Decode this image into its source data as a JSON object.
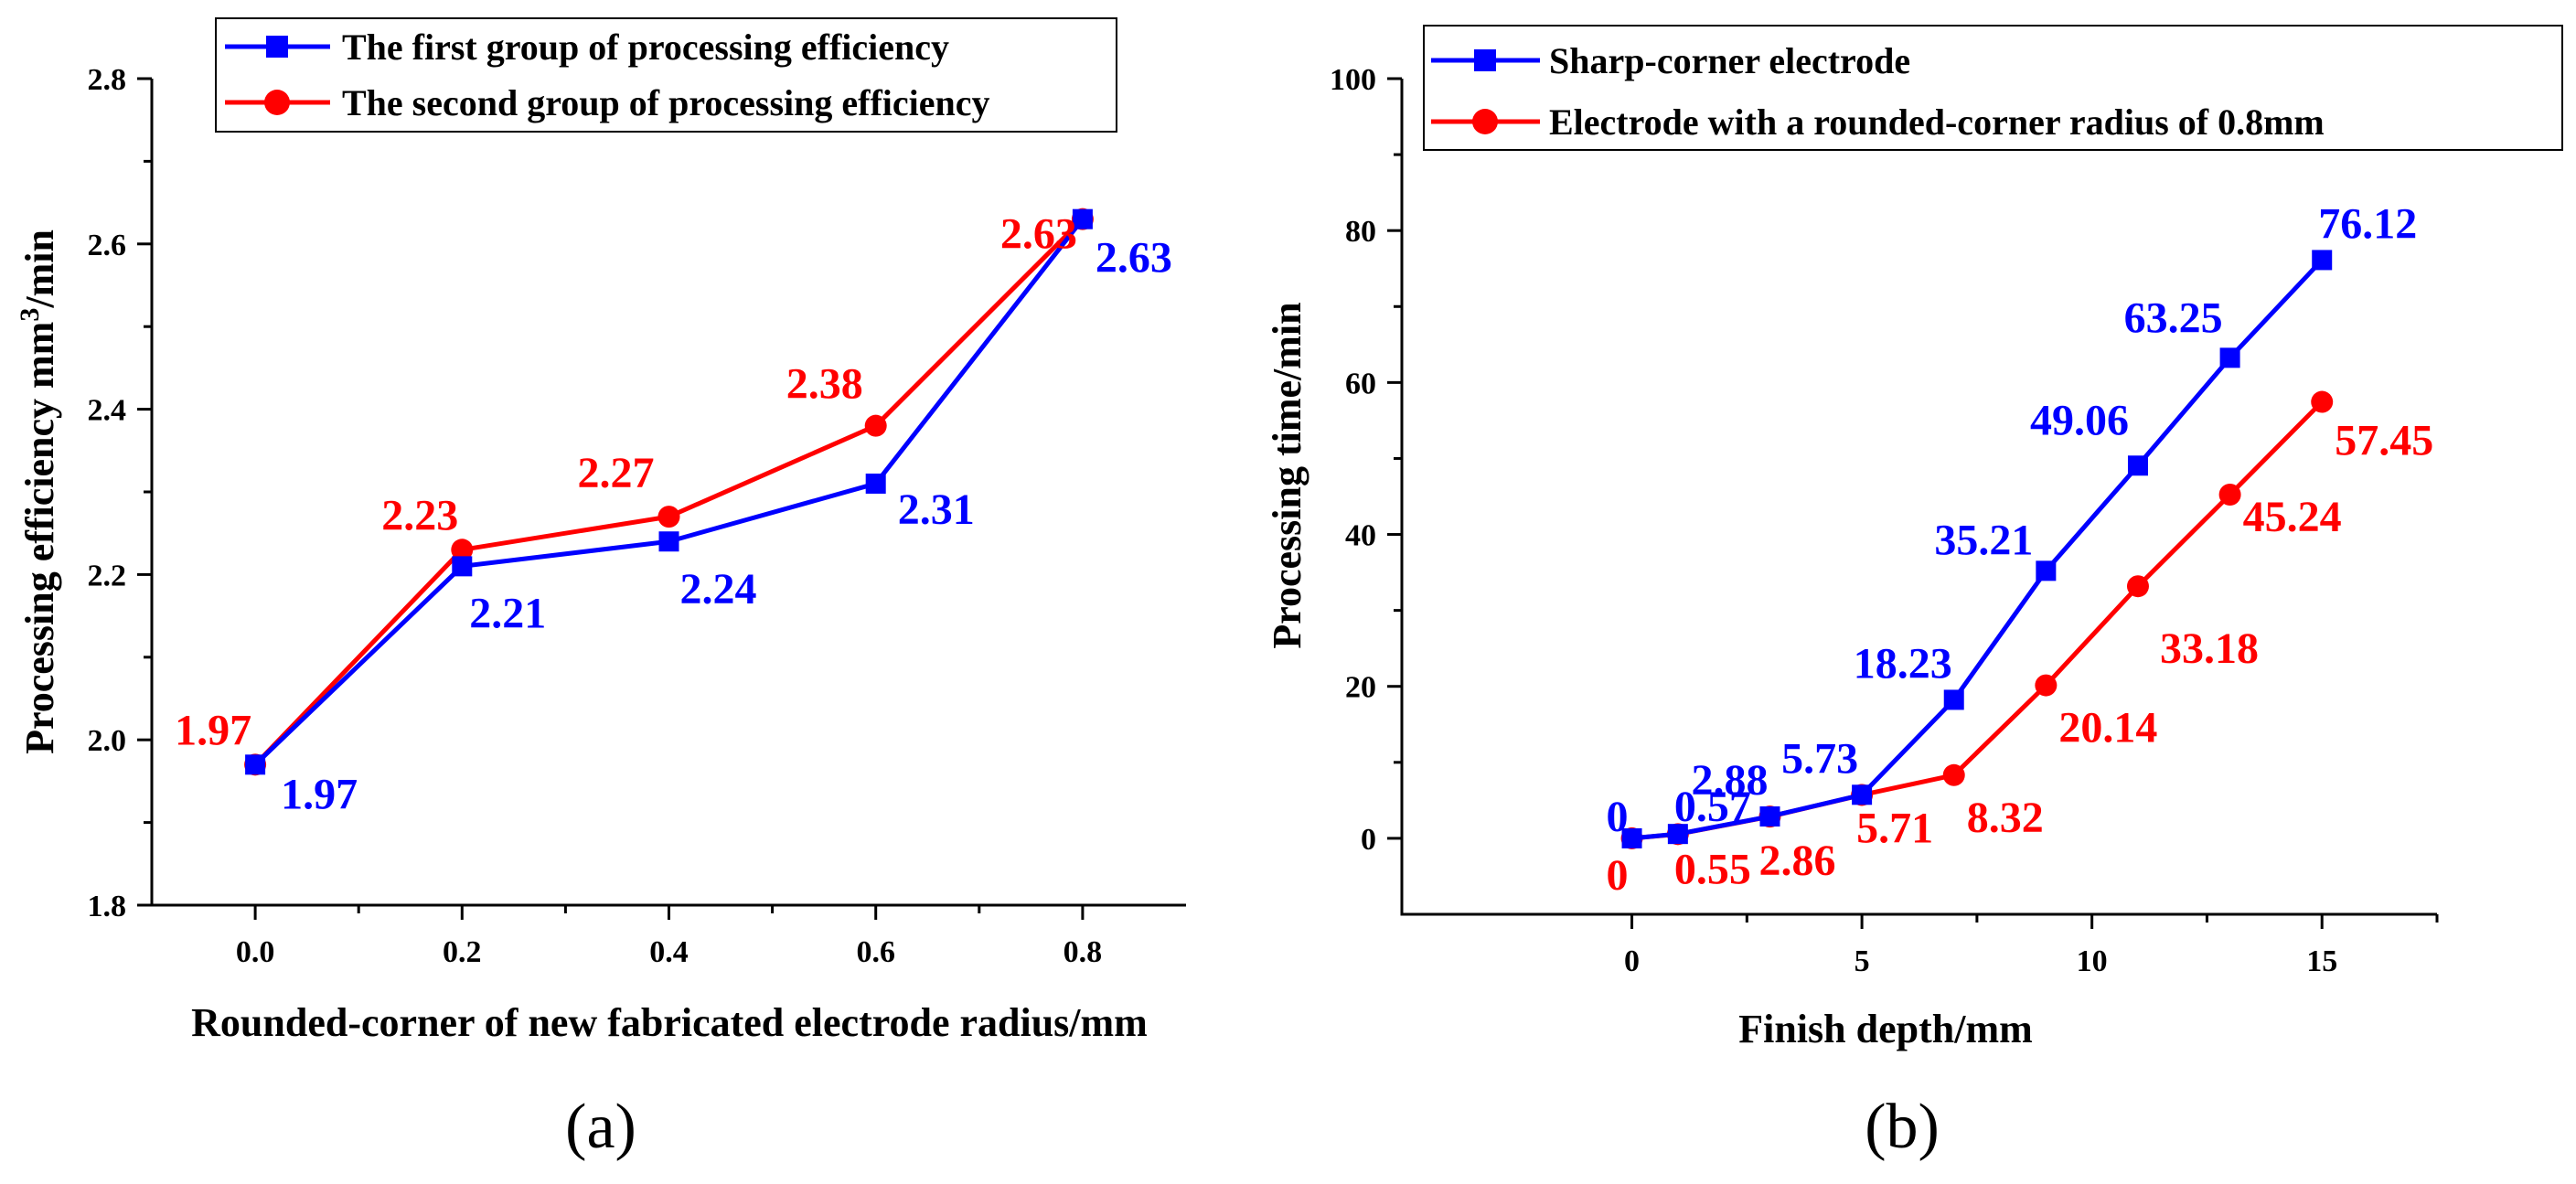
{
  "chart_data": [
    {
      "id": "a",
      "type": "line",
      "panel_label": "(a)",
      "xlabel": "Rounded-corner of new fabricated electrode radius/mm",
      "ylabel_main": "Processing efficiency  mm",
      "ylabel_sup": "3",
      "ylabel_tail": "/min",
      "xlim": [
        -0.1,
        0.9
      ],
      "ylim": [
        1.8,
        2.8
      ],
      "xticks": [
        0.0,
        0.2,
        0.4,
        0.6,
        0.8
      ],
      "xtick_labels": [
        "0.0",
        "0.2",
        "0.4",
        "0.6",
        "0.8"
      ],
      "yticks": [
        1.8,
        2.0,
        2.2,
        2.4,
        2.6,
        2.8
      ],
      "ytick_labels": [
        "1.8",
        "2.0",
        "2.2",
        "2.4",
        "2.6",
        "2.8"
      ],
      "legend_position": "top",
      "series": [
        {
          "name": "The first group of processing efficiency",
          "color": "#0000ff",
          "marker": "square",
          "x": [
            0.0,
            0.2,
            0.4,
            0.6,
            0.8
          ],
          "y": [
            1.97,
            2.21,
            2.24,
            2.31,
            2.63
          ],
          "labels": [
            "1.97",
            "2.21",
            "2.24",
            "2.31",
            "2.63"
          ]
        },
        {
          "name": "The second group of processing efficiency",
          "color": "#ff0000",
          "marker": "circle",
          "x": [
            0.0,
            0.2,
            0.4,
            0.6,
            0.8
          ],
          "y": [
            1.97,
            2.23,
            2.27,
            2.38,
            2.63
          ],
          "labels": [
            "1.97",
            "2.23",
            "2.27",
            "2.38",
            "2.63"
          ]
        }
      ]
    },
    {
      "id": "b",
      "type": "line",
      "panel_label": "(b)",
      "xlabel": "Finish depth/mm",
      "ylabel_main": "Processing time/min",
      "ylabel_sup": "",
      "ylabel_tail": "",
      "xlim": [
        -5,
        17.5
      ],
      "ylim": [
        -10,
        100
      ],
      "xticks": [
        0,
        5,
        10,
        15
      ],
      "xtick_labels": [
        "0",
        "5",
        "10",
        "15"
      ],
      "yticks": [
        0,
        20,
        40,
        60,
        80,
        100
      ],
      "ytick_labels": [
        "0",
        "20",
        "40",
        "60",
        "80",
        "100"
      ],
      "legend_position": "top-right",
      "series": [
        {
          "name": "Sharp-corner electrode",
          "color": "#0000ff",
          "marker": "square",
          "x": [
            0,
            1,
            3,
            5,
            7,
            9,
            11,
            13,
            15
          ],
          "y": [
            0,
            0.57,
            2.88,
            5.73,
            18.23,
            35.21,
            49.06,
            63.25,
            76.12
          ],
          "labels": [
            "0",
            "0.57",
            "2.88",
            "5.73",
            "18.23",
            "35.21",
            "49.06",
            "63.25",
            "76.12"
          ]
        },
        {
          "name": "Electrode with a rounded-corner radius of 0.8mm",
          "color": "#ff0000",
          "marker": "circle",
          "x": [
            0,
            1,
            3,
            5,
            7,
            9,
            11,
            13,
            15
          ],
          "y": [
            0,
            0.55,
            2.86,
            5.71,
            8.32,
            20.14,
            33.18,
            45.24,
            57.45
          ],
          "labels": [
            "0",
            "0.55",
            "2.86",
            "5.71",
            "8.32",
            "20.14",
            "33.18",
            "45.24",
            "57.45"
          ]
        }
      ]
    }
  ]
}
